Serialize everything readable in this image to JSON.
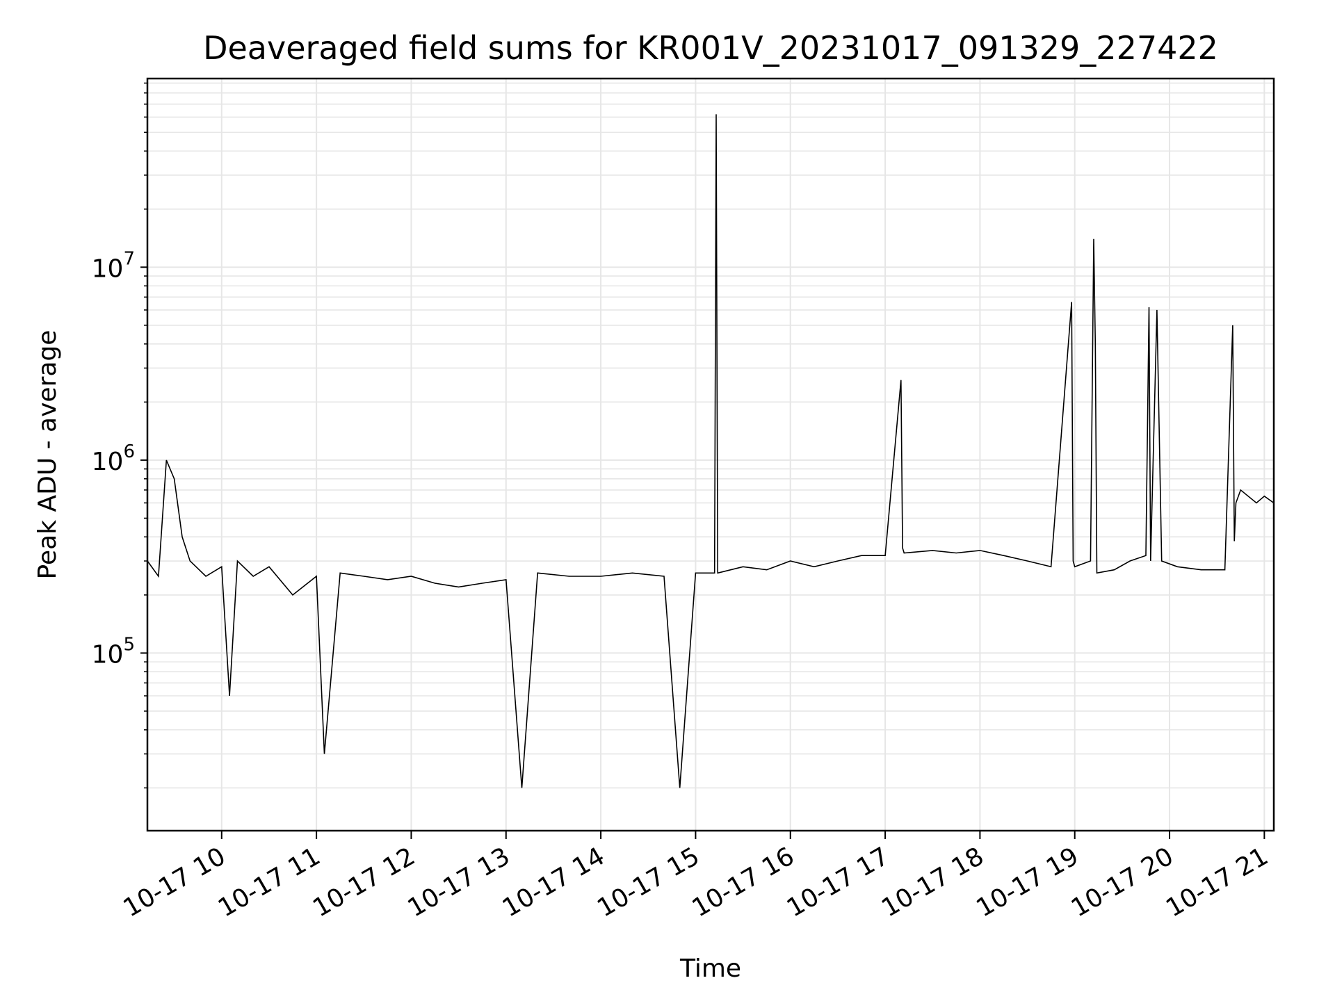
{
  "chart_data": {
    "type": "line",
    "title": "Deaveraged field sums for KR001V_20231017_091329_227422",
    "xlabel": "Time",
    "ylabel": "Peak ADU - average",
    "yscale": "log",
    "xlim": [
      "2023-10-17 09:13",
      "2023-10-17 21:06"
    ],
    "ylim": [
      12000,
      95000000
    ],
    "grid": true,
    "grid_color": "#e6e6e6",
    "line_color": "#000000",
    "x_ticks": [
      {
        "t": "2023-10-17 10:00",
        "label": "10-17 10"
      },
      {
        "t": "2023-10-17 11:00",
        "label": "10-17 11"
      },
      {
        "t": "2023-10-17 12:00",
        "label": "10-17 12"
      },
      {
        "t": "2023-10-17 13:00",
        "label": "10-17 13"
      },
      {
        "t": "2023-10-17 14:00",
        "label": "10-17 14"
      },
      {
        "t": "2023-10-17 15:00",
        "label": "10-17 15"
      },
      {
        "t": "2023-10-17 16:00",
        "label": "10-17 16"
      },
      {
        "t": "2023-10-17 17:00",
        "label": "10-17 17"
      },
      {
        "t": "2023-10-17 18:00",
        "label": "10-17 18"
      },
      {
        "t": "2023-10-17 19:00",
        "label": "10-17 19"
      },
      {
        "t": "2023-10-17 20:00",
        "label": "10-17 20"
      },
      {
        "t": "2023-10-17 21:00",
        "label": "10-17 21"
      }
    ],
    "y_ticks": [
      {
        "value": 100000,
        "base": "10",
        "exp": "5"
      },
      {
        "value": 1000000,
        "base": "10",
        "exp": "6"
      },
      {
        "value": 10000000,
        "base": "10",
        "exp": "7"
      }
    ],
    "series": [
      {
        "x": [
          "2023-10-17 09:13",
          "2023-10-17 09:20",
          "2023-10-17 09:25",
          "2023-10-17 09:30",
          "2023-10-17 09:35",
          "2023-10-17 09:40",
          "2023-10-17 09:50",
          "2023-10-17 10:00",
          "2023-10-17 10:05",
          "2023-10-17 10:10",
          "2023-10-17 10:20",
          "2023-10-17 10:30",
          "2023-10-17 10:45",
          "2023-10-17 11:00",
          "2023-10-17 11:05",
          "2023-10-17 11:15",
          "2023-10-17 11:30",
          "2023-10-17 11:45",
          "2023-10-17 12:00",
          "2023-10-17 12:15",
          "2023-10-17 12:30",
          "2023-10-17 12:45",
          "2023-10-17 13:00",
          "2023-10-17 13:10",
          "2023-10-17 13:20",
          "2023-10-17 13:40",
          "2023-10-17 14:00",
          "2023-10-17 14:20",
          "2023-10-17 14:40",
          "2023-10-17 14:50",
          "2023-10-17 15:00",
          "2023-10-17 15:12",
          "2023-10-17 15:13",
          "2023-10-17 15:14",
          "2023-10-17 15:30",
          "2023-10-17 15:45",
          "2023-10-17 16:00",
          "2023-10-17 16:15",
          "2023-10-17 16:30",
          "2023-10-17 16:45",
          "2023-10-17 17:00",
          "2023-10-17 17:10",
          "2023-10-17 17:11",
          "2023-10-17 17:12",
          "2023-10-17 17:30",
          "2023-10-17 17:45",
          "2023-10-17 18:00",
          "2023-10-17 18:15",
          "2023-10-17 18:30",
          "2023-10-17 18:45",
          "2023-10-17 18:58",
          "2023-10-17 18:59",
          "2023-10-17 19:00",
          "2023-10-17 19:10",
          "2023-10-17 19:12",
          "2023-10-17 19:13",
          "2023-10-17 19:14",
          "2023-10-17 19:25",
          "2023-10-17 19:35",
          "2023-10-17 19:45",
          "2023-10-17 19:47",
          "2023-10-17 19:48",
          "2023-10-17 19:52",
          "2023-10-17 19:55",
          "2023-10-17 20:05",
          "2023-10-17 20:20",
          "2023-10-17 20:35",
          "2023-10-17 20:40",
          "2023-10-17 20:41",
          "2023-10-17 20:42",
          "2023-10-17 20:45",
          "2023-10-17 20:55",
          "2023-10-17 21:00",
          "2023-10-17 21:06"
        ],
        "y": [
          300000,
          250000,
          1000000,
          800000,
          400000,
          300000,
          250000,
          280000,
          60000,
          300000,
          250000,
          280000,
          200000,
          250000,
          30000,
          260000,
          250000,
          240000,
          250000,
          230000,
          220000,
          230000,
          240000,
          20000,
          260000,
          250000,
          250000,
          260000,
          250000,
          20000,
          260000,
          260000,
          62000000,
          260000,
          280000,
          270000,
          300000,
          280000,
          300000,
          320000,
          320000,
          2600000,
          350000,
          330000,
          340000,
          330000,
          340000,
          320000,
          300000,
          280000,
          6600000,
          300000,
          280000,
          300000,
          14000000,
          4000000,
          260000,
          270000,
          300000,
          320000,
          6200000,
          300000,
          6000000,
          300000,
          280000,
          270000,
          270000,
          5000000,
          380000,
          600000,
          700000,
          600000,
          650000,
          600000
        ]
      }
    ]
  }
}
